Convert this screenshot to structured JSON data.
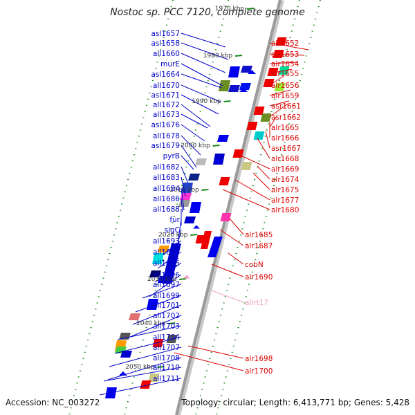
{
  "title": "Nostoc sp. PCC 7120, complete genome",
  "footer": {
    "accession": "Accession: NC_003272",
    "summary": "Topology: circular; Length: 6,413,771 bp; Genes: 5,428"
  },
  "colors": {
    "left_labels": "#0000cc",
    "right_labels": "#dd0000",
    "rna_label": "#f0a0c8",
    "backbone": "#9a9a9a",
    "tick_green": "#1a8a1a"
  },
  "kbp_ticks": [
    "1970 kbp",
    "1980 kbp",
    "1990 kbp",
    "2000 kbp",
    "2010 kbp",
    "2020 kbp",
    "2030 kbp",
    "2040 kbp",
    "2050 kbp"
  ],
  "left_genes": [
    "asl1657",
    "asl1658",
    "all1660",
    "murE",
    "asl1664",
    "all1670",
    "asl1671",
    "all1672",
    "all1673",
    "asl1676",
    "all1678",
    "asl1679",
    "pyrB",
    "all1682",
    "all1683",
    "all1684",
    "all1686",
    "all1688",
    "fur",
    "sigC",
    "all1693",
    "all1694",
    "all1695",
    "all1696",
    "all1697",
    "all1699",
    "all1701",
    "all1702",
    "all1703",
    "all1704",
    "all1707",
    "all1708",
    "all1710",
    "all1711"
  ],
  "right_genes": [
    "alr1652",
    "alr1653",
    "alr1654",
    "alr1655",
    "alr1656",
    "alr1659",
    "asr1661",
    "asr1662",
    "alr1665",
    "alr1666",
    "asr1667",
    "alr1668",
    "alr1669",
    "alr1674",
    "alr1675",
    "alr1677",
    "alr1680",
    "alr1685",
    "alr1687",
    "cobN",
    "alr1690",
    "allrt17",
    "alr1698",
    "alr1700"
  ]
}
